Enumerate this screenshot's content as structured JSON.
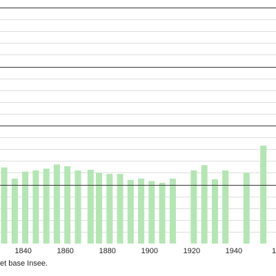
{
  "chart_data": {
    "type": "bar",
    "title": "",
    "xlabel": "",
    "ylabel": "",
    "x": [
      1831,
      1836,
      1841,
      1846,
      1851,
      1856,
      1861,
      1866,
      1872,
      1876,
      1881,
      1886,
      1891,
      1896,
      1901,
      1906,
      1911,
      1921,
      1926,
      1931,
      1936,
      1946,
      1954
    ],
    "values": [
      645,
      550,
      610,
      620,
      635,
      670,
      655,
      620,
      625,
      600,
      590,
      590,
      540,
      550,
      530,
      515,
      550,
      620,
      665,
      545,
      620,
      600,
      830
    ],
    "xlim": [
      1829,
      1960
    ],
    "ylim": [
      0,
      2000
    ],
    "x_ticks": [
      "1840",
      "1860",
      "1880",
      "1900",
      "1920",
      "1940"
    ],
    "x_tick_values": [
      1840,
      1860,
      1880,
      1900,
      1920,
      1940
    ],
    "major_gridlines": [
      500,
      1000,
      1500,
      2000
    ],
    "minor_gridlines": [
      100,
      200,
      300,
      400,
      600,
      700,
      800,
      900,
      1100,
      1200,
      1300,
      1400,
      1600,
      1700,
      1800,
      1900
    ],
    "bar_color": "#b3e6b3",
    "major_grid_color": "#333333",
    "minor_grid_color": "#bbbbbb",
    "cut_tick_label": "1"
  },
  "source": {
    "text": "et base Insee."
  }
}
